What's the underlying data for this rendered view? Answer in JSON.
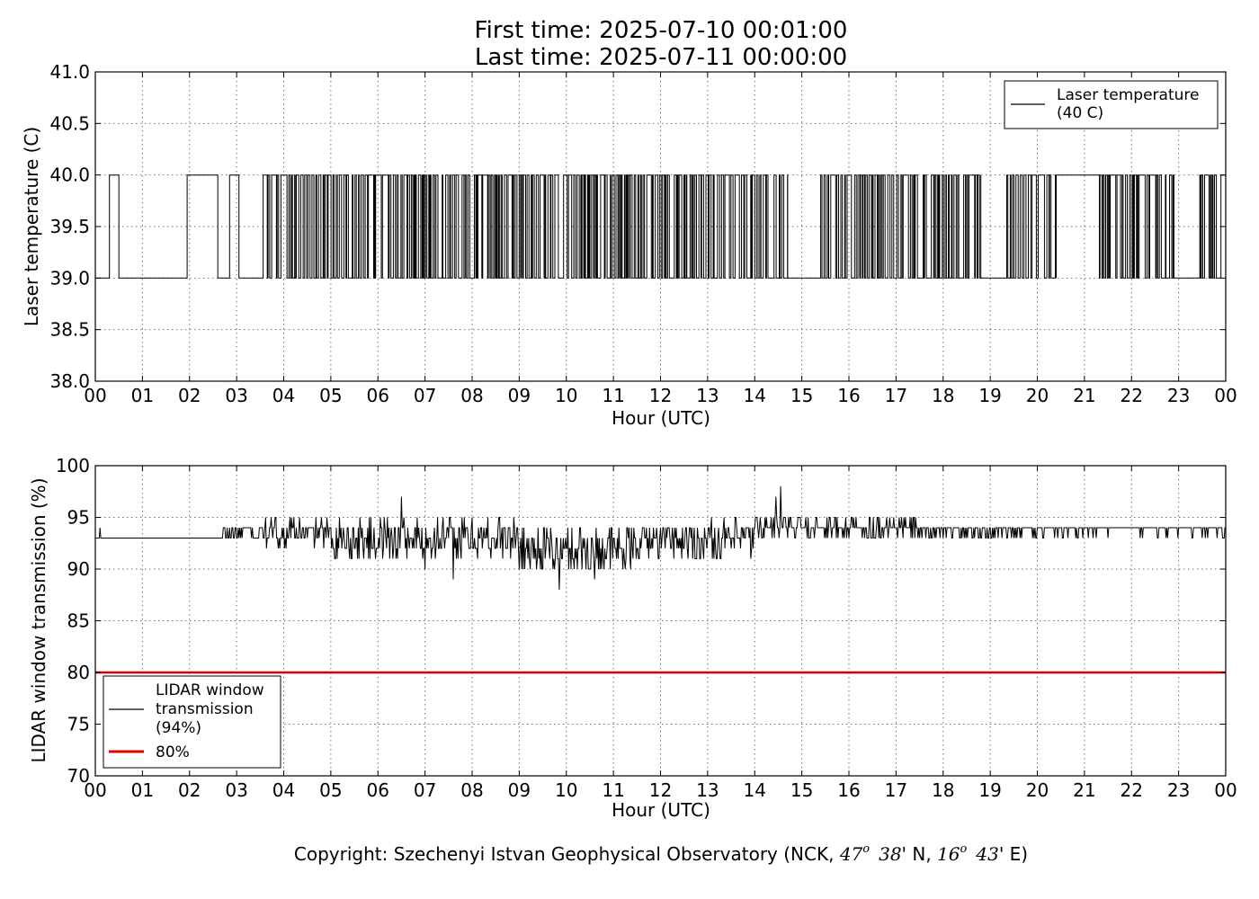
{
  "title": {
    "line1": "First time: 2025-07-10 00:01:00",
    "line2": "Last time: 2025-07-11 00:00:00"
  },
  "copyright": {
    "prefix": "Copyright: Szechenyi Istvan Geophysical Observatory (NCK, ",
    "lat_deg": "47",
    "lat_min": "38",
    "lat_suffix": "' N, ",
    "lon_deg": "16",
    "lon_min": "43",
    "lon_suffix": "' E)",
    "degree_mark": "o"
  },
  "colors": {
    "series": "#000000",
    "threshold": "#e00000",
    "frame": "#000000",
    "background": "#ffffff"
  },
  "chart_data": [
    {
      "type": "line",
      "xlabel": "Hour (UTC)",
      "ylabel": "Laser temperature (C)",
      "xlim": [
        0,
        24
      ],
      "ylim": [
        38.0,
        41.0
      ],
      "grid": true,
      "legend_placement": "top-right",
      "x_ticks": [
        0,
        1,
        2,
        3,
        4,
        5,
        6,
        7,
        8,
        9,
        10,
        11,
        12,
        13,
        14,
        15,
        16,
        17,
        18,
        19,
        20,
        21,
        22,
        23,
        24
      ],
      "x_tick_labels": [
        "00",
        "01",
        "02",
        "03",
        "04",
        "05",
        "06",
        "07",
        "08",
        "09",
        "10",
        "11",
        "12",
        "13",
        "14",
        "15",
        "16",
        "17",
        "18",
        "19",
        "20",
        "21",
        "22",
        "23",
        "00"
      ],
      "y_ticks": [
        38.0,
        38.5,
        39.0,
        39.5,
        40.0,
        40.5,
        41.0
      ],
      "y_tick_labels": [
        "38.0",
        "38.5",
        "39.0",
        "39.5",
        "40.0",
        "40.5",
        "41.0"
      ],
      "series": [
        {
          "name": "Laser temperature\n(40 C)",
          "legend_lines": [
            "Laser temperature",
            "(40 C)"
          ],
          "color": "#000000",
          "note": "values toggle between 39.0 and 40.0 throughout the day",
          "segments": [
            {
              "x": [
                0.0,
                0.3
              ],
              "y": 39.0
            },
            {
              "x": [
                0.3,
                0.5
              ],
              "y": 40.0
            },
            {
              "x": [
                0.5,
                1.45
              ],
              "y": 39.0
            },
            {
              "x": [
                1.45,
                1.95
              ],
              "y": 39.0
            },
            {
              "x": [
                1.95,
                2.05
              ],
              "y": 40.0
            },
            {
              "x": [
                2.05,
                2.35
              ],
              "y": 40.0
            },
            {
              "x": [
                2.35,
                2.6
              ],
              "y": 40.0
            },
            {
              "x": [
                2.6,
                2.85
              ],
              "y": 39.0
            },
            {
              "x": [
                2.85,
                3.05
              ],
              "y": 40.0
            },
            {
              "x": [
                3.05,
                3.55
              ],
              "y": 39.0
            },
            {
              "x": [
                3.55,
                14.7
              ],
              "y": 39.5
            },
            {
              "x": [
                14.7,
                15.4
              ],
              "y": 39.0
            },
            {
              "x": [
                15.4,
                18.8
              ],
              "y": 39.5
            },
            {
              "x": [
                18.8,
                19.35
              ],
              "y": 39.0
            },
            {
              "x": [
                19.35,
                20.4
              ],
              "y": 39.5
            },
            {
              "x": [
                20.4,
                21.3
              ],
              "y": 40.0
            },
            {
              "x": [
                21.3,
                22.9
              ],
              "y": 39.5
            },
            {
              "x": [
                22.9,
                23.45
              ],
              "y": 39.0
            },
            {
              "x": [
                23.45,
                24.0
              ],
              "y": 39.5
            }
          ]
        }
      ]
    },
    {
      "type": "line",
      "xlabel": "Hour (UTC)",
      "ylabel": "LIDAR window transmission (%)",
      "xlim": [
        0,
        24
      ],
      "ylim": [
        70,
        100
      ],
      "grid": true,
      "legend_placement": "bottom-left",
      "x_ticks": [
        0,
        1,
        2,
        3,
        4,
        5,
        6,
        7,
        8,
        9,
        10,
        11,
        12,
        13,
        14,
        15,
        16,
        17,
        18,
        19,
        20,
        21,
        22,
        23,
        24
      ],
      "x_tick_labels": [
        "00",
        "01",
        "02",
        "03",
        "04",
        "05",
        "06",
        "07",
        "08",
        "09",
        "10",
        "11",
        "12",
        "13",
        "14",
        "15",
        "16",
        "17",
        "18",
        "19",
        "20",
        "21",
        "22",
        "23",
        "00"
      ],
      "y_ticks": [
        70,
        75,
        80,
        85,
        90,
        95,
        100
      ],
      "y_tick_labels": [
        "70",
        "75",
        "80",
        "85",
        "90",
        "95",
        "100"
      ],
      "series": [
        {
          "name": "LIDAR window\ntransmission\n(94%)",
          "legend_lines": [
            "LIDAR window",
            "transmission",
            "(94%)"
          ],
          "color": "#000000",
          "profile": [
            {
              "x": [
                0.0,
                2.7
              ],
              "base": 93,
              "amp": 0
            },
            {
              "x": [
                2.7,
                3.5
              ],
              "base": 93.5,
              "amp": 0.6
            },
            {
              "x": [
                3.5,
                5.0
              ],
              "base": 93.5,
              "amp": 1.2
            },
            {
              "x": [
                5.0,
                9.0
              ],
              "base": 93,
              "amp": 2.0
            },
            {
              "x": [
                9.0,
                11.5
              ],
              "base": 92,
              "amp": 2.3
            },
            {
              "x": [
                11.5,
                14.0
              ],
              "base": 92.8,
              "amp": 1.8
            },
            {
              "x": [
                14.0,
                15.0
              ],
              "base": 94,
              "amp": 1.5
            },
            {
              "x": [
                15.0,
                17.5
              ],
              "base": 94,
              "amp": 1.0
            },
            {
              "x": [
                17.5,
                20.0
              ],
              "base": 93.7,
              "amp": 0.5
            },
            {
              "x": [
                20.0,
                24.0
              ],
              "base": 93.8,
              "amp": 0.4
            }
          ],
          "spikes": [
            {
              "x": 0.1,
              "y": 94
            },
            {
              "x": 6.5,
              "y": 97
            },
            {
              "x": 7.0,
              "y": 90
            },
            {
              "x": 7.6,
              "y": 89
            },
            {
              "x": 9.85,
              "y": 88
            },
            {
              "x": 10.6,
              "y": 89
            },
            {
              "x": 14.45,
              "y": 97
            },
            {
              "x": 14.55,
              "y": 98
            }
          ]
        },
        {
          "name": "80%",
          "legend_lines": [
            "80%"
          ],
          "color": "#e00000",
          "values": {
            "x": [
              0,
              24
            ],
            "y": [
              80,
              80
            ]
          }
        }
      ]
    }
  ]
}
